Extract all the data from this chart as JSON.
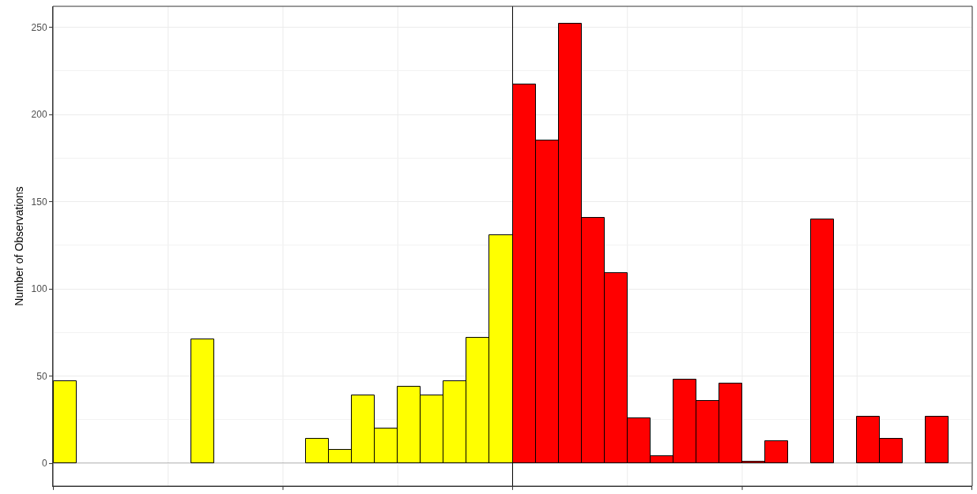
{
  "chart_data": {
    "type": "bar",
    "ylabel": "Number of Observations",
    "categories": [
      null,
      null,
      null,
      null,
      null,
      null,
      null,
      null,
      null,
      null,
      null,
      null,
      null,
      null,
      null,
      null,
      null,
      null,
      null,
      null,
      null,
      null,
      null,
      null,
      null,
      null,
      null,
      null,
      null,
      null,
      null,
      null,
      null,
      null,
      null,
      null,
      null,
      null,
      null,
      null
    ],
    "values": [
      47,
      0,
      0,
      0,
      0,
      0,
      71,
      0,
      0,
      0,
      0,
      14,
      8,
      39,
      20,
      44,
      39,
      47,
      72,
      131,
      217,
      185,
      252,
      141,
      109,
      26,
      4,
      48,
      36,
      46,
      1,
      13,
      0,
      140,
      0,
      27,
      14,
      0,
      27,
      0
    ],
    "colors": [
      "#ffff00",
      "#ffff00",
      "#ffff00",
      "#ffff00",
      "#ffff00",
      "#ffff00",
      "#ffff00",
      "#ffff00",
      "#ffff00",
      "#ffff00",
      "#ffff00",
      "#ffff00",
      "#ffff00",
      "#ffff00",
      "#ffff00",
      "#ffff00",
      "#ffff00",
      "#ffff00",
      "#ffff00",
      "#ffff00",
      "#ff0000",
      "#ff0000",
      "#ff0000",
      "#ff0000",
      "#ff0000",
      "#ff0000",
      "#ff0000",
      "#ff0000",
      "#ff0000",
      "#ff0000",
      "#ff0000",
      "#ff0000",
      "#ff0000",
      "#ff0000",
      "#ff0000",
      "#ff0000",
      "#ff0000",
      "#ff0000",
      "#ff0000",
      "#ff0000"
    ],
    "ylim": [
      -13,
      262
    ],
    "yticks": [
      0,
      50,
      100,
      150,
      200,
      250
    ],
    "grid": true,
    "tick_labels": "y"
  }
}
